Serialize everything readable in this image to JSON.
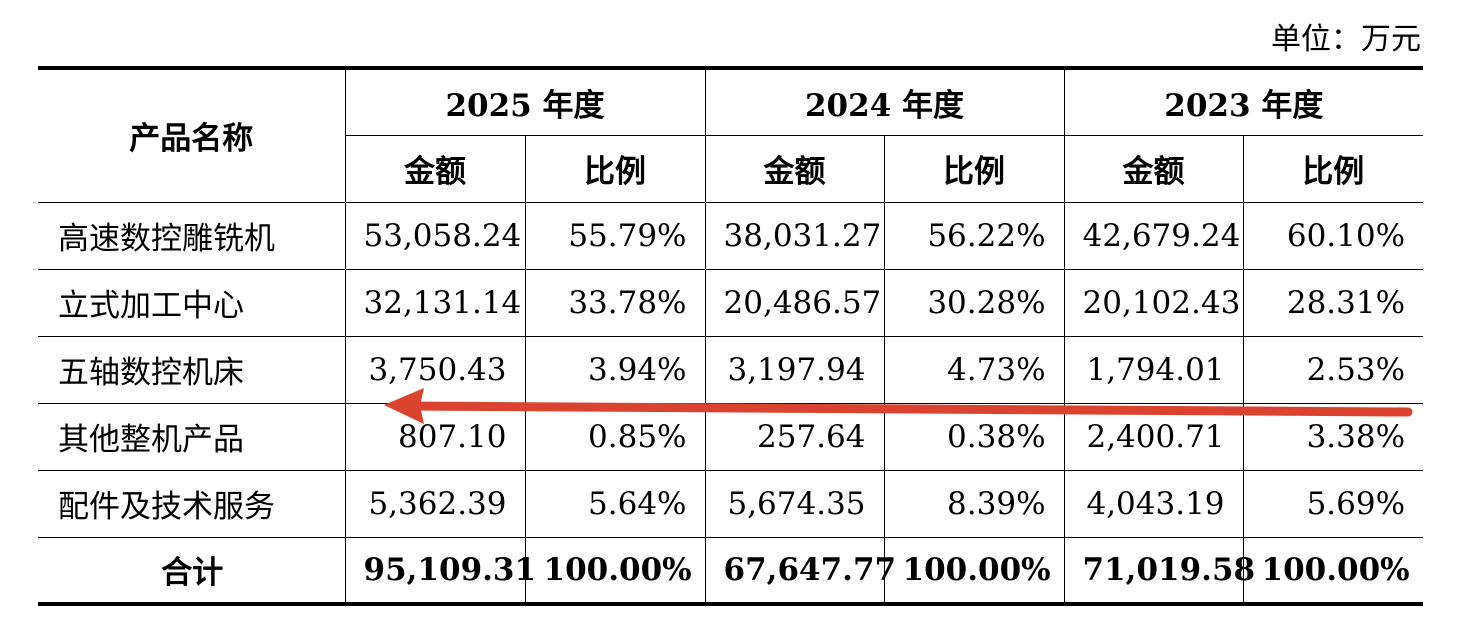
{
  "unit_label": "单位：万元",
  "table": {
    "product_header": "产品名称",
    "years": [
      "2025 年度",
      "2024 年度",
      "2023 年度"
    ],
    "amount_header": "金额",
    "ratio_header": "比例",
    "rows": [
      {
        "name": "高速数控雕铣机",
        "values": [
          "53,058.24",
          "55.79%",
          "38,031.27",
          "56.22%",
          "42,679.24",
          "60.10%"
        ]
      },
      {
        "name": "立式加工中心",
        "values": [
          "32,131.14",
          "33.78%",
          "20,486.57",
          "30.28%",
          "20,102.43",
          "28.31%"
        ]
      },
      {
        "name": "五轴数控机床",
        "values": [
          "3,750.43",
          "3.94%",
          "3,197.94",
          "4.73%",
          "1,794.01",
          "2.53%"
        ]
      },
      {
        "name": "其他整机产品",
        "values": [
          "807.10",
          "0.85%",
          "257.64",
          "0.38%",
          "2,400.71",
          "3.38%"
        ]
      },
      {
        "name": "配件及技术服务",
        "values": [
          "5,362.39",
          "5.64%",
          "5,674.35",
          "8.39%",
          "4,043.19",
          "5.69%"
        ]
      }
    ],
    "total": {
      "name": "合计",
      "values": [
        "95,109.31",
        "100.00%",
        "67,647.77",
        "100.00%",
        "71,019.58",
        "100.00%"
      ]
    }
  },
  "annotation": {
    "arrow_color": "#d9432f"
  }
}
